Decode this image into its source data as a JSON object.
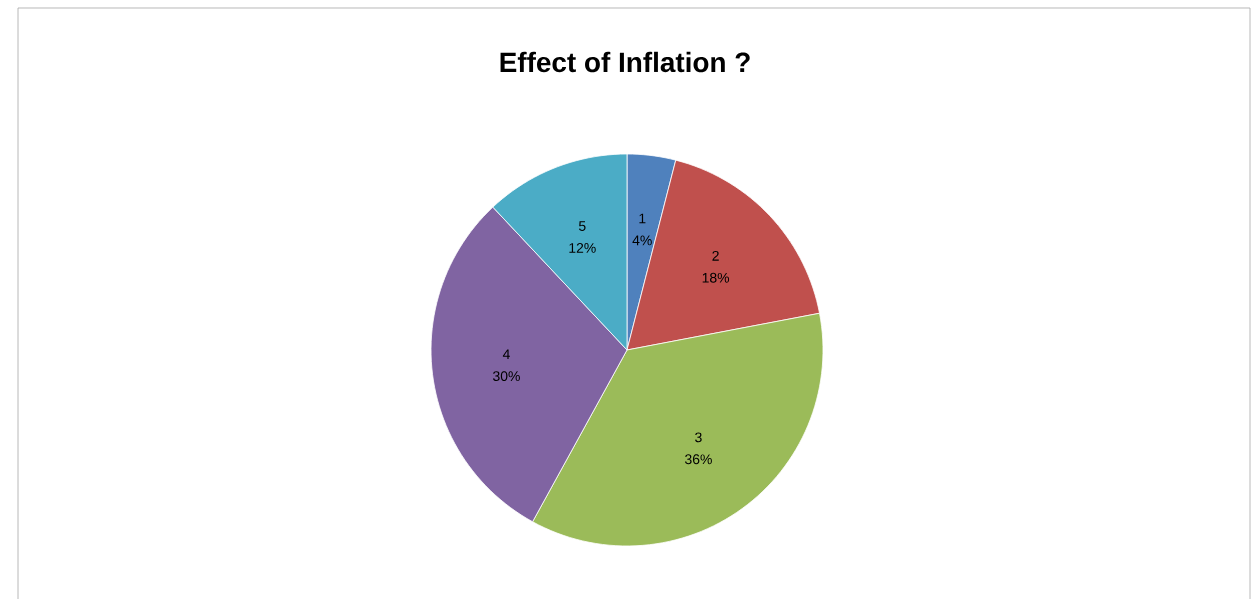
{
  "chart_data": {
    "type": "pie",
    "title": "Effect of Inflation ?",
    "categories": [
      "1",
      "2",
      "3",
      "4",
      "5"
    ],
    "values": [
      4,
      18,
      36,
      30,
      12
    ],
    "value_labels": [
      "4%",
      "18%",
      "36%",
      "30%",
      "12%"
    ],
    "colors": [
      "#4f81bd",
      "#c0504d",
      "#9bbb59",
      "#8064a2",
      "#4bacc6"
    ]
  }
}
